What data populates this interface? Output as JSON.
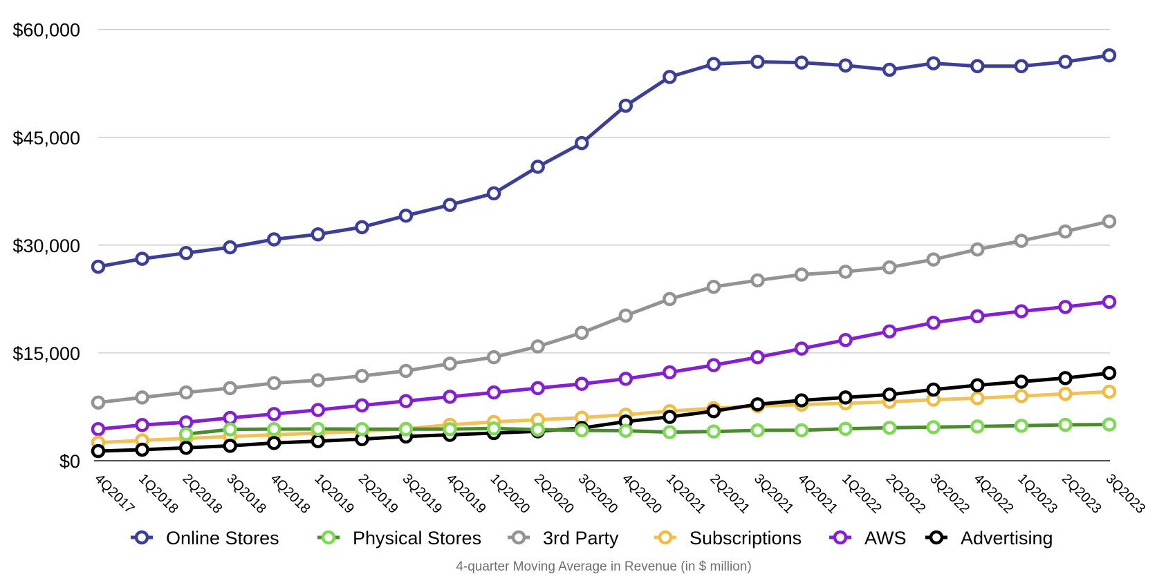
{
  "chart_data": {
    "type": "line",
    "title": "",
    "caption": "4-quarter Moving Average in Revenue (in $ million)",
    "xlabel": "",
    "ylabel": "",
    "ylim": [
      0,
      60000
    ],
    "yticks": [
      0,
      15000,
      30000,
      45000,
      60000
    ],
    "ytick_labels": [
      "$0",
      "$15,000",
      "$30,000",
      "$45,000",
      "$60,000"
    ],
    "grid": true,
    "legend_position": "bottom",
    "categories": [
      "4Q2017",
      "1Q2018",
      "2Q2018",
      "3Q2018",
      "4Q2018",
      "1Q2019",
      "2Q2019",
      "3Q2019",
      "4Q2019",
      "1Q2020",
      "2Q2020",
      "3Q2020",
      "4Q2020",
      "1Q2021",
      "2Q2021",
      "3Q2021",
      "4Q2021",
      "1Q2022",
      "2Q2022",
      "3Q2022",
      "4Q2022",
      "1Q2023",
      "2Q2023",
      "3Q2023"
    ],
    "series": [
      {
        "name": "Online Stores",
        "color": "#3b3f99",
        "marker_color": "#3b3f99",
        "values": [
          27000,
          28100,
          28900,
          29700,
          30800,
          31500,
          32500,
          34100,
          35600,
          37200,
          40900,
          44200,
          49400,
          53400,
          55200,
          55500,
          55400,
          55000,
          54400,
          55300,
          54900,
          54900,
          55500,
          56400
        ]
      },
      {
        "name": "Physical Stores",
        "color": "#4c8a30",
        "marker_color": "#7ed957",
        "values": [
          null,
          null,
          3700,
          4360,
          4400,
          4420,
          4400,
          4390,
          4390,
          4490,
          4330,
          4230,
          4170,
          3980,
          4070,
          4230,
          4240,
          4440,
          4580,
          4670,
          4770,
          4870,
          5000,
          5040
        ]
      },
      {
        "name": "3rd Party",
        "color": "#939393",
        "marker_color": "#939393",
        "values": [
          8100,
          8800,
          9500,
          10100,
          10800,
          11200,
          11800,
          12500,
          13500,
          14400,
          15900,
          17800,
          20200,
          22500,
          24200,
          25100,
          25900,
          26300,
          26900,
          28000,
          29400,
          30600,
          31900,
          33300
        ]
      },
      {
        "name": "Subscriptions",
        "color": "#f0c25a",
        "marker_color": "#f0bc42",
        "values": [
          2530,
          2830,
          3100,
          3370,
          3600,
          3850,
          4100,
          4450,
          5000,
          5400,
          5700,
          6000,
          6400,
          6900,
          7300,
          7600,
          7800,
          8000,
          8200,
          8500,
          8700,
          9000,
          9300,
          9600
        ]
      },
      {
        "name": "AWS",
        "color": "#8420d2",
        "marker_color": "#8420d2",
        "values": [
          4400,
          4970,
          5350,
          5960,
          6500,
          7060,
          7700,
          8300,
          8900,
          9500,
          10100,
          10700,
          11400,
          12300,
          13300,
          14400,
          15600,
          16800,
          18000,
          19200,
          20100,
          20800,
          21400,
          22100
        ]
      },
      {
        "name": "Advertising",
        "color": "#000000",
        "marker_color": "#000000",
        "values": [
          1350,
          1540,
          1800,
          2080,
          2470,
          2730,
          3000,
          3370,
          3600,
          3850,
          4100,
          4550,
          5450,
          6100,
          6900,
          7850,
          8400,
          8800,
          9200,
          9900,
          10500,
          11000,
          11500,
          12200
        ]
      }
    ]
  }
}
